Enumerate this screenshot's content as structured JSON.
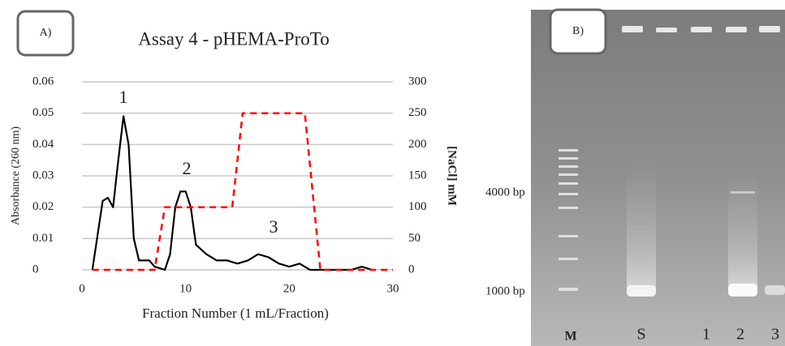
{
  "panel_a": {
    "label": "A)"
  },
  "chart_data": {
    "type": "line",
    "title": "Assay 4 - pHEMA-ProTo",
    "x_label": "Fraction Number (1 mL/Fraction)",
    "y_label": "Absorbance (260 nm)",
    "y2_label": "[NaCl] mM",
    "xlim": [
      0,
      30
    ],
    "xticks": [
      0,
      10,
      20,
      30
    ],
    "ylim": [
      0,
      0.06
    ],
    "yticks": [
      0,
      0.01,
      0.02,
      0.03,
      0.04,
      0.05,
      0.06
    ],
    "y2lim": [
      0,
      300
    ],
    "y2ticks": [
      0,
      50,
      100,
      150,
      200,
      250,
      300
    ],
    "grid": true,
    "annotations": [
      "1",
      "2",
      "3"
    ],
    "series": [
      {
        "color": "#000000",
        "style": "solid",
        "x": [
          1,
          2,
          2.5,
          3,
          3.5,
          4,
          4.5,
          5,
          5.5,
          6,
          6.5,
          7,
          8,
          8.5,
          9,
          9.5,
          10,
          10.5,
          11,
          12,
          13,
          14,
          15,
          16,
          17,
          18,
          19,
          20,
          21,
          22,
          23,
          26,
          27,
          28
        ],
        "values": [
          0,
          0.022,
          0.023,
          0.02,
          0.035,
          0.049,
          0.04,
          0.01,
          0.003,
          0.003,
          0.003,
          0.001,
          0,
          0.005,
          0.02,
          0.025,
          0.025,
          0.02,
          0.008,
          0.005,
          0.003,
          0.003,
          0.002,
          0.003,
          0.005,
          0.004,
          0.002,
          0.001,
          0.002,
          0,
          0,
          0,
          0.001,
          0
        ]
      },
      {
        "color": "#ff0000",
        "style": "dashed",
        "axis": "y2",
        "x": [
          1,
          7,
          8,
          14.5,
          15.5,
          21.5,
          23,
          30
        ],
        "values": [
          0,
          0,
          100,
          100,
          250,
          250,
          0,
          0
        ]
      }
    ]
  },
  "gel": {
    "label": "B)",
    "markers": [
      "4000 bp",
      "1000 bp"
    ],
    "lanes": [
      "M",
      "S",
      "1",
      "2",
      "3"
    ]
  }
}
